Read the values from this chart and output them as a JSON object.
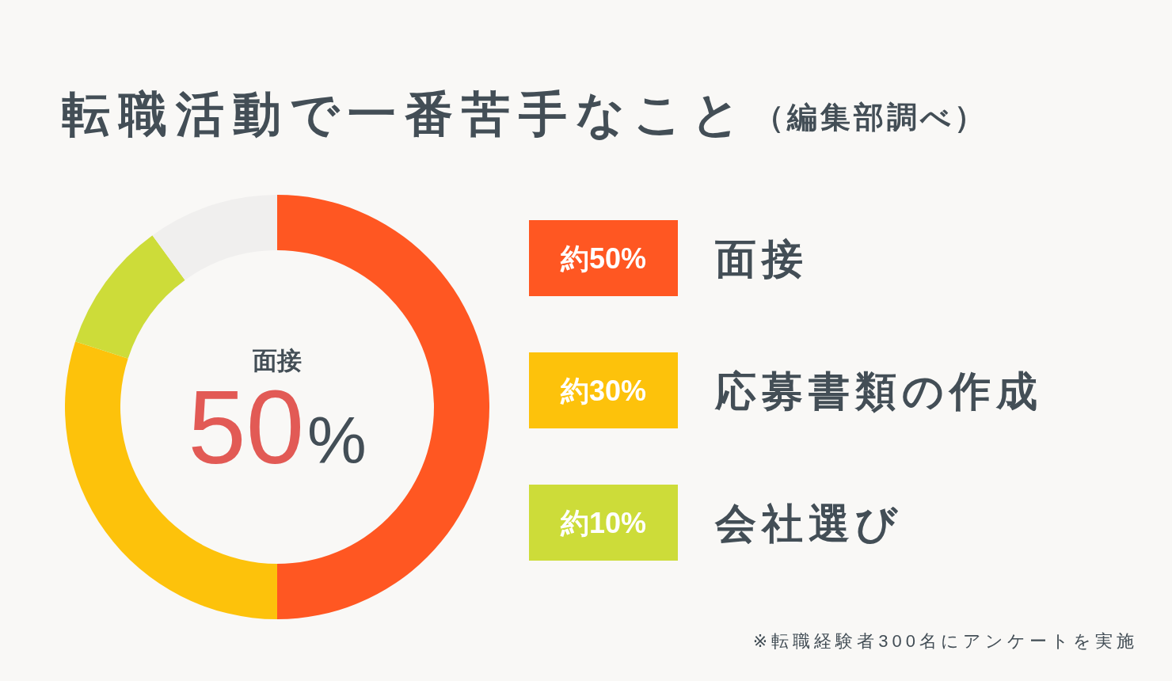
{
  "chart_data": {
    "type": "donut",
    "title": "転職活動で一番苦手なこと",
    "subtitle": "（編集部調べ）",
    "categories": [
      "面接",
      "応募書類の作成",
      "会社選び",
      null
    ],
    "values": [
      50,
      30,
      10,
      10
    ],
    "colors": [
      "#ff5722",
      "#fdc20b",
      "#cddc39",
      "#f0efee"
    ],
    "value_labels": [
      "約50%",
      "約30%",
      "約10%",
      null
    ],
    "legend": "right",
    "annotations": [
      "面接",
      "50%",
      "※転職経験者300名にアンケートを実施"
    ]
  }
}
